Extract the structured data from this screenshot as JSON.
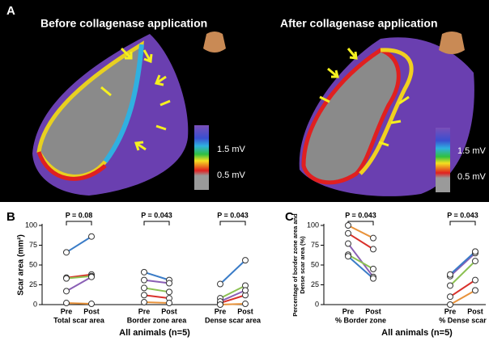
{
  "panel_a": {
    "label": "A",
    "left_title": "Before collagenase application",
    "right_title": "After collagenase application",
    "scale_labels": [
      "1.5 mV",
      "0.5 mV"
    ]
  },
  "chart_data": [
    {
      "type": "dot",
      "label": "B",
      "ylabel": [
        "Scar area (mm²)"
      ],
      "xlabel": "All animals (n=5)",
      "categories": [
        "Pre",
        "Post",
        "Pre",
        "Post",
        "Pre",
        "Post"
      ],
      "groups": [
        "Total scar area",
        "Border zone area",
        "Dense scar area"
      ],
      "annotations": [
        "P = 0.08",
        "P = 0.043",
        "P = 0.043"
      ],
      "ylim": [
        0,
        100
      ],
      "yticks": [
        0,
        25,
        50,
        75,
        100
      ],
      "series": [
        {
          "color": "#3a7cc7",
          "values": [
            66,
            86,
            41,
            31,
            26,
            56
          ]
        },
        {
          "color": "#d9312b",
          "values": [
            34,
            38,
            12,
            8,
            2,
            12
          ]
        },
        {
          "color": "#8cc152",
          "values": [
            33,
            36,
            21,
            16,
            8,
            24
          ]
        },
        {
          "color": "#8a5fb5",
          "values": [
            17,
            35,
            31,
            27,
            4,
            18
          ]
        },
        {
          "color": "#e8923a",
          "values": [
            2,
            1,
            3,
            2,
            0,
            1
          ]
        }
      ]
    },
    {
      "type": "dot",
      "label": "C",
      "ylabel": [
        "Percentage of border zone area and",
        "Dense scar area (%)"
      ],
      "xlabel": "All animals (n=5)",
      "categories": [
        "Pre",
        "Post",
        "Pre",
        "Post"
      ],
      "groups": [
        "% Border zone",
        "% Dense scar"
      ],
      "annotations": [
        "P = 0.043",
        "P = 0.043"
      ],
      "ylim": [
        0,
        100
      ],
      "yticks": [
        0,
        25,
        50,
        75,
        100
      ],
      "series": [
        {
          "color": "#e8923a",
          "values": [
            100,
            84,
            0,
            18
          ]
        },
        {
          "color": "#d9312b",
          "values": [
            90,
            70,
            10,
            31
          ]
        },
        {
          "color": "#8a5fb5",
          "values": [
            77,
            35,
            36,
            65
          ]
        },
        {
          "color": "#8cc152",
          "values": [
            63,
            45,
            24,
            55
          ]
        },
        {
          "color": "#3a7cc7",
          "values": [
            61,
            33,
            38,
            67
          ]
        }
      ]
    }
  ]
}
